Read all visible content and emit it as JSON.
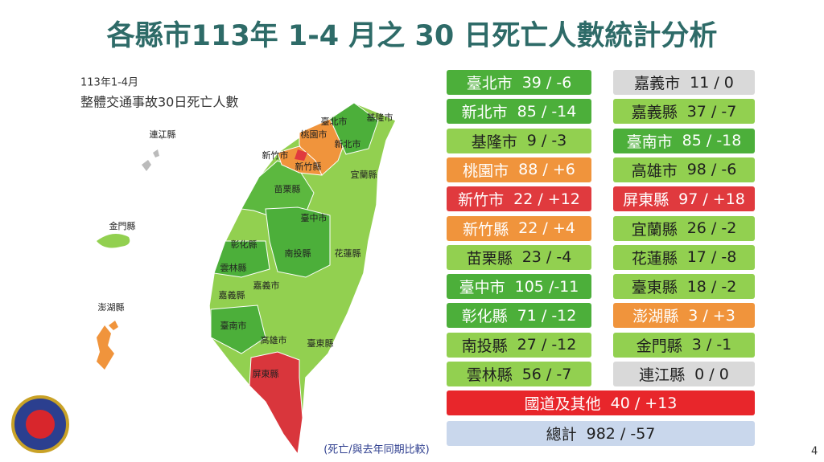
{
  "header": {
    "title": "各縣市113年 1-4 月之 30 日死亡人數統計分析"
  },
  "map": {
    "period": "113年1-4月",
    "subtitle": "整體交通事故30日死亡人數",
    "note": "(死亡/與去年同期比較)",
    "labels": [
      "臺北市",
      "基隆市",
      "桃園市",
      "新北市",
      "新竹市",
      "新竹縣",
      "宜蘭縣",
      "苗栗縣",
      "臺中市",
      "彰化縣",
      "南投縣",
      "花蓮縣",
      "雲林縣",
      "嘉義市",
      "嘉義縣",
      "臺南市",
      "高雄市",
      "臺東縣",
      "屏東縣",
      "連江縣",
      "金門縣",
      "澎湖縣"
    ]
  },
  "left_column": [
    {
      "name": "臺北市",
      "value": "39 / -6",
      "color": "#4caf3a",
      "text_color": "#ffffff"
    },
    {
      "name": "新北市",
      "value": "85 / -14",
      "color": "#4caf3a",
      "text_color": "#ffffff"
    },
    {
      "name": "基隆市",
      "value": "9 / -3",
      "color": "#92d050",
      "text_color": "#1f1f1f"
    },
    {
      "name": "桃園市",
      "value": "88 / +6",
      "color": "#f0943c",
      "text_color": "#ffffff"
    },
    {
      "name": "新竹市",
      "value": "22 / +12",
      "color": "#e03a3e",
      "text_color": "#ffffff"
    },
    {
      "name": "新竹縣",
      "value": "22 / +4",
      "color": "#f0943c",
      "text_color": "#ffffff"
    },
    {
      "name": "苗栗縣",
      "value": "23 / -4",
      "color": "#92d050",
      "text_color": "#1f1f1f"
    },
    {
      "name": "臺中市",
      "value": "105 /-11",
      "color": "#4caf3a",
      "text_color": "#ffffff"
    },
    {
      "name": "彰化縣",
      "value": "71 / -12",
      "color": "#4caf3a",
      "text_color": "#ffffff"
    },
    {
      "name": "南投縣",
      "value": "27 / -12",
      "color": "#92d050",
      "text_color": "#1f1f1f"
    },
    {
      "name": "雲林縣",
      "value": "56 / -7",
      "color": "#92d050",
      "text_color": "#1f1f1f"
    }
  ],
  "right_column": [
    {
      "name": "嘉義市",
      "value": "11 / 0",
      "color": "#d9d9d9",
      "text_color": "#1f1f1f"
    },
    {
      "name": "嘉義縣",
      "value": "37 / -7",
      "color": "#92d050",
      "text_color": "#1f1f1f"
    },
    {
      "name": "臺南市",
      "value": "85 / -18",
      "color": "#4caf3a",
      "text_color": "#ffffff"
    },
    {
      "name": "高雄市",
      "value": "98 / -6",
      "color": "#92d050",
      "text_color": "#1f1f1f"
    },
    {
      "name": "屏東縣",
      "value": "97 / +18",
      "color": "#e03a3e",
      "text_color": "#ffffff"
    },
    {
      "name": "宜蘭縣",
      "value": "26 / -2",
      "color": "#92d050",
      "text_color": "#1f1f1f"
    },
    {
      "name": "花蓮縣",
      "value": "17 / -8",
      "color": "#92d050",
      "text_color": "#1f1f1f"
    },
    {
      "name": "臺東縣",
      "value": "18 / -2",
      "color": "#92d050",
      "text_color": "#1f1f1f"
    },
    {
      "name": "澎湖縣",
      "value": "3 / +3",
      "color": "#f0943c",
      "text_color": "#ffffff"
    },
    {
      "name": "金門縣",
      "value": "3 / -1",
      "color": "#92d050",
      "text_color": "#1f1f1f"
    },
    {
      "name": "連江縣",
      "value": "0 / 0",
      "color": "#d9d9d9",
      "text_color": "#1f1f1f"
    }
  ],
  "footer_rows": [
    {
      "name": "國道及其他",
      "value": "40 / +13",
      "color": "#e8262b",
      "text_color": "#ffffff"
    },
    {
      "name": "總計",
      "value": "982 / -57",
      "color": "#c9d7ec",
      "text_color": "#1f1f1f"
    }
  ],
  "page_number": "4"
}
